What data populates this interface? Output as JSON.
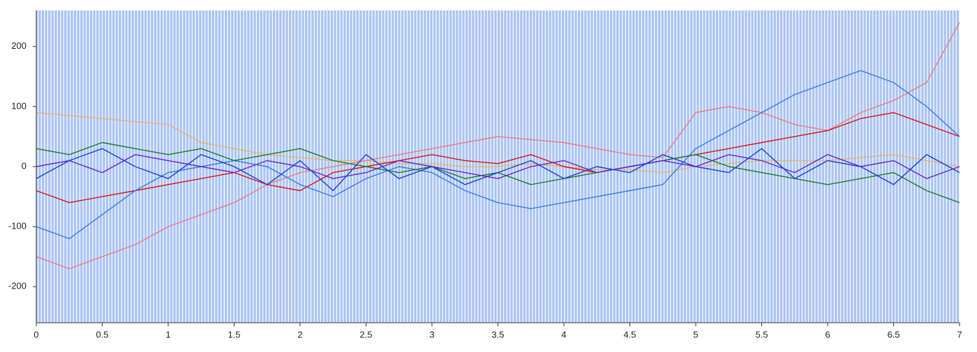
{
  "chart_data": {
    "type": "line",
    "x": [
      0,
      0.25,
      0.5,
      0.75,
      1,
      1.25,
      1.5,
      1.75,
      2,
      2.25,
      2.5,
      2.75,
      3,
      3.25,
      3.5,
      3.75,
      4,
      4.25,
      4.5,
      4.75,
      5,
      5.25,
      5.5,
      5.75,
      6,
      6.25,
      6.5,
      6.75,
      7
    ],
    "series": [
      {
        "color": "#e8b56a",
        "values": [
          90,
          85,
          80,
          75,
          70,
          40,
          30,
          20,
          15,
          10,
          10,
          5,
          5,
          0,
          0,
          5,
          0,
          -5,
          -5,
          -10,
          0,
          5,
          10,
          10,
          10,
          15,
          20,
          10,
          0
        ]
      },
      {
        "color": "#f07a7a",
        "values": [
          -150,
          -170,
          -150,
          -130,
          -100,
          -80,
          -60,
          -30,
          -10,
          0,
          10,
          20,
          30,
          40,
          50,
          45,
          40,
          30,
          20,
          15,
          90,
          100,
          90,
          70,
          60,
          90,
          110,
          140,
          240
        ]
      },
      {
        "color": "#e01010",
        "values": [
          -40,
          -60,
          -50,
          -40,
          -30,
          -20,
          -10,
          -30,
          -40,
          -10,
          0,
          10,
          20,
          10,
          5,
          20,
          0,
          -10,
          0,
          10,
          20,
          30,
          40,
          50,
          60,
          80,
          90,
          70,
          50
        ]
      },
      {
        "color": "#3a78e8",
        "values": [
          -100,
          -120,
          -80,
          -40,
          -10,
          0,
          10,
          0,
          -30,
          -50,
          -20,
          0,
          -10,
          -40,
          -60,
          -70,
          -60,
          -50,
          -40,
          -30,
          30,
          60,
          90,
          120,
          140,
          160,
          140,
          100,
          50
        ]
      },
      {
        "color": "#1d7a1d",
        "values": [
          30,
          20,
          40,
          30,
          20,
          30,
          10,
          20,
          30,
          10,
          0,
          -10,
          0,
          -20,
          -10,
          -30,
          -20,
          -10,
          0,
          10,
          20,
          0,
          -10,
          -20,
          -30,
          -20,
          -10,
          -40,
          -60
        ]
      },
      {
        "color": "#6a22c8",
        "values": [
          0,
          10,
          -10,
          20,
          10,
          0,
          -10,
          10,
          0,
          -20,
          -10,
          10,
          0,
          -10,
          -20,
          0,
          10,
          -10,
          0,
          10,
          0,
          20,
          10,
          -10,
          20,
          0,
          10,
          -20,
          0
        ]
      },
      {
        "color": "#1a3cd8",
        "values": [
          -20,
          10,
          30,
          0,
          -20,
          20,
          0,
          -30,
          10,
          -40,
          20,
          -20,
          0,
          -30,
          -10,
          10,
          -20,
          0,
          -10,
          20,
          0,
          -10,
          30,
          -20,
          10,
          0,
          -30,
          20,
          -10
        ]
      }
    ],
    "xlim": [
      0,
      7
    ],
    "ylim": [
      -260,
      260
    ],
    "xticks": [
      0,
      0.5,
      1,
      1.5,
      2,
      2.5,
      3,
      3.5,
      4,
      4.5,
      5,
      5.5,
      6,
      6.5,
      7
    ],
    "yticks": [
      -200,
      -100,
      0,
      100,
      200
    ]
  }
}
